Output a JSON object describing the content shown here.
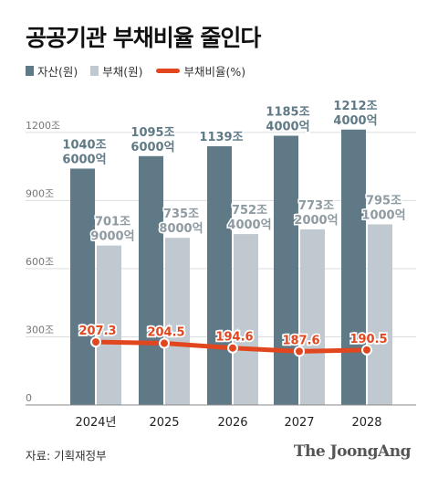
{
  "title": "공공기관 부채비율 줄인다",
  "legend": {
    "assets": "자산(원)",
    "debt": "부채(원)",
    "ratio": "부채비율(%)"
  },
  "colors": {
    "assets": "#5f7a86",
    "debt": "#bfc9cf",
    "ratio": "#e2461e",
    "assets_label": "#5f7a86",
    "debt_label": "#8e9aa1"
  },
  "source": "자료: 기획재정부",
  "brand": "The JoongAng",
  "chart_data": {
    "type": "bar",
    "categories": [
      "2024년",
      "2025",
      "2026",
      "2027",
      "2028"
    ],
    "ylim": [
      0,
      1300
    ],
    "yticks": [
      0,
      300,
      600,
      900,
      1200
    ],
    "ytick_labels": [
      "0",
      "300조",
      "600조",
      "900조",
      "1200조"
    ],
    "series": [
      {
        "name": "자산(원)",
        "values": [
          1040.6,
          1095.6,
          1139,
          1185.4,
          1212.4
        ],
        "labels": [
          [
            "1040조",
            "6000억"
          ],
          [
            "1095조",
            "6000억"
          ],
          [
            "1139조"
          ],
          [
            "1185조",
            "4000억"
          ],
          [
            "1212조",
            "4000억"
          ]
        ]
      },
      {
        "name": "부채(원)",
        "values": [
          701.9,
          735.8,
          752.4,
          773.2,
          795.1
        ],
        "labels": [
          [
            "701조",
            "9000억"
          ],
          [
            "735조",
            "8000억"
          ],
          [
            "752조",
            "4000억"
          ],
          [
            "773조",
            "2000억"
          ],
          [
            "795조",
            "1000억"
          ]
        ]
      }
    ],
    "line": {
      "name": "부채비율(%)",
      "values": [
        207.3,
        204.5,
        194.6,
        187.6,
        190.5
      ],
      "labels": [
        "207.3",
        "204.5",
        "194.6",
        "187.6",
        "190.5"
      ],
      "ylim": [
        150,
        330
      ]
    }
  }
}
